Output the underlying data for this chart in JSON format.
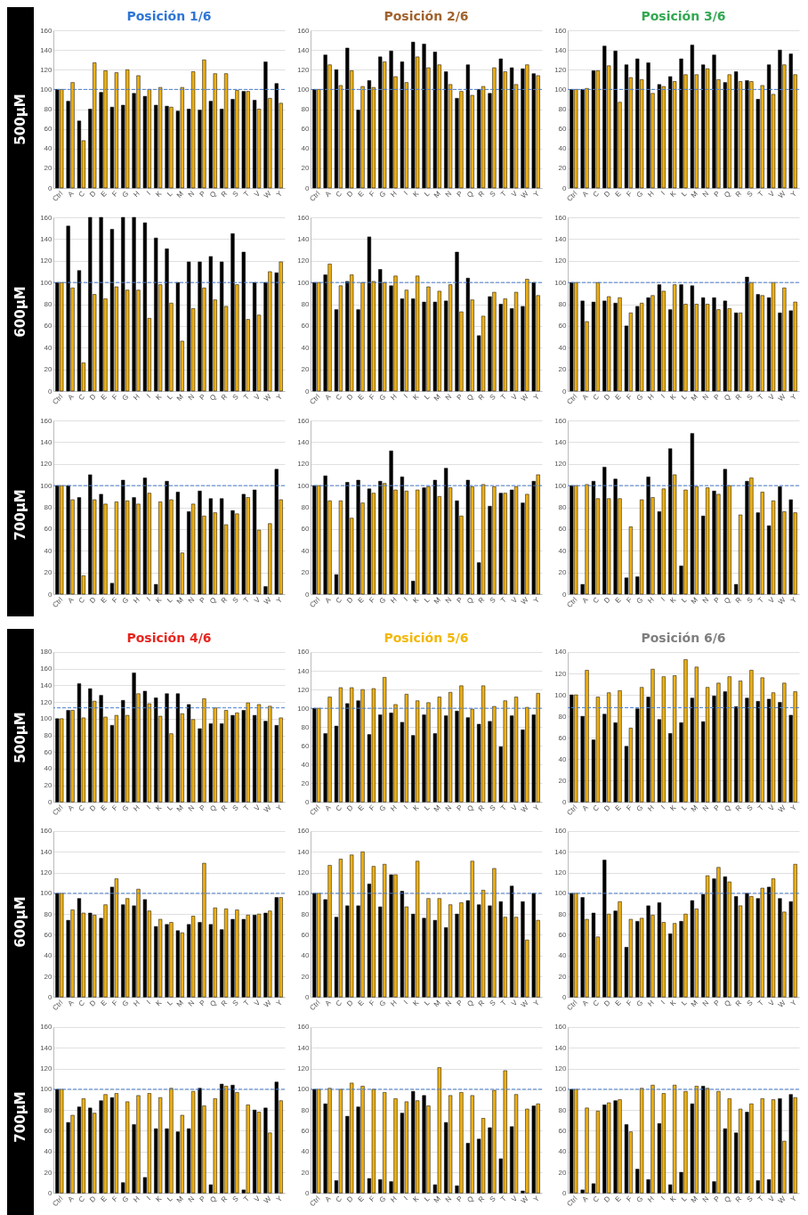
{
  "chart_data": [
    {
      "type": "bar",
      "title": "Posición 1/6",
      "ylabel": "500µM",
      "categories": [
        "Ctrl",
        "A",
        "C",
        "D",
        "E",
        "F",
        "G",
        "H",
        "I",
        "K",
        "L",
        "M",
        "N",
        "P",
        "Q",
        "R",
        "S",
        "T",
        "V",
        "W",
        "Y"
      ],
      "ylim": [
        0,
        160
      ],
      "yticks": [
        0,
        20,
        40,
        60,
        80,
        100,
        120,
        140,
        160
      ],
      "grid": "y",
      "ref_lines": [
        {
          "axis": "y",
          "value": 100,
          "color": "#4a7fd0",
          "line_style": "dashed"
        }
      ],
      "series": [
        {
          "color": "#000000",
          "values": [
            100,
            88,
            68,
            80,
            97,
            82,
            84,
            96,
            93,
            84,
            83,
            78,
            80,
            79,
            88,
            80,
            90,
            98,
            89,
            128,
            106
          ]
        },
        {
          "color": "#eeb012",
          "values": [
            100,
            107,
            48,
            127,
            119,
            117,
            120,
            114,
            100,
            102,
            82,
            102,
            118,
            130,
            116,
            116,
            99,
            98,
            80,
            91,
            86
          ]
        }
      ]
    },
    {
      "type": "bar",
      "title": "Posición 2/6",
      "categories": [
        "Ctrl",
        "A",
        "C",
        "D",
        "E",
        "F",
        "G",
        "H",
        "I",
        "K",
        "L",
        "M",
        "N",
        "P",
        "Q",
        "R",
        "S",
        "T",
        "V",
        "W",
        "Y"
      ],
      "ylim": [
        0,
        160
      ],
      "yticks": [
        0,
        20,
        40,
        60,
        80,
        100,
        120,
        140,
        160
      ],
      "grid": "y",
      "ref_lines": [
        {
          "axis": "y",
          "value": 100,
          "color": "#4a7fd0",
          "line_style": "dashed"
        }
      ],
      "series": [
        {
          "color": "#000000",
          "values": [
            100,
            135,
            120,
            142,
            79,
            109,
            133,
            139,
            128,
            148,
            146,
            138,
            118,
            91,
            125,
            100,
            96,
            131,
            122,
            121,
            116
          ]
        },
        {
          "color": "#eeb012",
          "values": [
            100,
            125,
            104,
            119,
            103,
            102,
            128,
            113,
            107,
            133,
            122,
            125,
            105,
            98,
            94,
            103,
            122,
            118,
            105,
            125,
            114
          ]
        }
      ]
    },
    {
      "type": "bar",
      "title": "Posición 3/6",
      "categories": [
        "Ctrl",
        "A",
        "C",
        "D",
        "E",
        "F",
        "G",
        "H",
        "I",
        "K",
        "L",
        "M",
        "N",
        "P",
        "Q",
        "R",
        "S",
        "T",
        "V",
        "W",
        "Y"
      ],
      "ylim": [
        0,
        160
      ],
      "yticks": [
        0,
        20,
        40,
        60,
        80,
        100,
        120,
        140,
        160
      ],
      "grid": "y",
      "ref_lines": [
        {
          "axis": "y",
          "value": 100,
          "color": "#4a7fd0",
          "line_style": "dashed"
        }
      ],
      "series": [
        {
          "color": "#000000",
          "values": [
            100,
            100,
            119,
            144,
            139,
            125,
            131,
            127,
            105,
            113,
            131,
            145,
            125,
            135,
            107,
            118,
            109,
            90,
            125,
            140,
            136
          ]
        },
        {
          "color": "#eeb012",
          "values": [
            100,
            101,
            119,
            124,
            87,
            112,
            110,
            96,
            103,
            108,
            115,
            115,
            121,
            110,
            115,
            108,
            108,
            104,
            95,
            125,
            115
          ]
        }
      ]
    },
    {
      "type": "bar",
      "ylabel": "600µM",
      "categories": [
        "Ctrl",
        "A",
        "C",
        "D",
        "E",
        "F",
        "G",
        "H",
        "I",
        "K",
        "L",
        "M",
        "N",
        "P",
        "Q",
        "R",
        "S",
        "T",
        "V",
        "W",
        "Y"
      ],
      "ylim": [
        0,
        160
      ],
      "yticks": [
        0,
        20,
        40,
        60,
        80,
        100,
        120,
        140,
        160
      ],
      "grid": "y",
      "ref_lines": [
        {
          "axis": "y",
          "value": 100,
          "color": "#4a7fd0",
          "line_style": "dashed"
        }
      ],
      "series": [
        {
          "color": "#000000",
          "values": [
            100,
            152,
            111,
            160,
            160,
            149,
            160,
            160,
            155,
            141,
            131,
            100,
            119,
            119,
            124,
            119,
            145,
            128,
            100,
            100,
            109
          ]
        },
        {
          "color": "#eeb012",
          "values": [
            100,
            95,
            26,
            89,
            85,
            96,
            93,
            93,
            67,
            98,
            81,
            46,
            76,
            95,
            84,
            78,
            98,
            66,
            70,
            110,
            119
          ]
        }
      ]
    },
    {
      "type": "bar",
      "categories": [
        "Ctrl",
        "A",
        "C",
        "D",
        "E",
        "F",
        "G",
        "H",
        "I",
        "K",
        "L",
        "M",
        "N",
        "P",
        "Q",
        "R",
        "S",
        "T",
        "V",
        "W",
        "Y"
      ],
      "ylim": [
        0,
        160
      ],
      "yticks": [
        0,
        20,
        40,
        60,
        80,
        100,
        120,
        140,
        160
      ],
      "grid": "y",
      "ref_lines": [
        {
          "axis": "y",
          "value": 100,
          "color": "#4a7fd0",
          "line_style": "dashed"
        }
      ],
      "series": [
        {
          "color": "#000000",
          "values": [
            100,
            107,
            75,
            101,
            75,
            142,
            112,
            97,
            85,
            85,
            82,
            82,
            83,
            128,
            104,
            51,
            87,
            80,
            76,
            78,
            100
          ]
        },
        {
          "color": "#eeb012",
          "values": [
            100,
            117,
            97,
            107,
            100,
            101,
            100,
            106,
            93,
            106,
            96,
            92,
            98,
            73,
            84,
            69,
            91,
            85,
            91,
            103,
            88
          ]
        }
      ]
    },
    {
      "type": "bar",
      "categories": [
        "Ctrl",
        "A",
        "C",
        "D",
        "E",
        "F",
        "G",
        "H",
        "I",
        "K",
        "L",
        "M",
        "N",
        "P",
        "Q",
        "R",
        "S",
        "T",
        "V",
        "W",
        "Y"
      ],
      "ylim": [
        0,
        160
      ],
      "yticks": [
        0,
        20,
        40,
        60,
        80,
        100,
        120,
        140,
        160
      ],
      "grid": "y",
      "ref_lines": [
        {
          "axis": "y",
          "value": 100,
          "color": "#4a7fd0",
          "line_style": "dashed"
        }
      ],
      "series": [
        {
          "color": "#000000",
          "values": [
            100,
            83,
            82,
            83,
            81,
            60,
            78,
            86,
            98,
            75,
            98,
            97,
            86,
            86,
            83,
            72,
            105,
            89,
            86,
            72,
            74
          ]
        },
        {
          "color": "#eeb012",
          "values": [
            100,
            64,
            100,
            87,
            86,
            72,
            81,
            88,
            92,
            98,
            80,
            80,
            80,
            75,
            76,
            72,
            100,
            88,
            100,
            95,
            82
          ]
        }
      ]
    },
    {
      "type": "bar",
      "ylabel": "700µM",
      "categories": [
        "Ctrl",
        "A",
        "C",
        "D",
        "E",
        "F",
        "G",
        "H",
        "I",
        "K",
        "L",
        "M",
        "N",
        "P",
        "Q",
        "R",
        "S",
        "T",
        "V",
        "W",
        "Y"
      ],
      "ylim": [
        0,
        160
      ],
      "yticks": [
        0,
        20,
        40,
        60,
        80,
        100,
        120,
        140,
        160
      ],
      "grid": "y",
      "ref_lines": [
        {
          "axis": "y",
          "value": 100,
          "color": "#4a7fd0",
          "line_style": "dashed"
        }
      ],
      "series": [
        {
          "color": "#000000",
          "values": [
            100,
            100,
            89,
            110,
            92,
            10,
            105,
            89,
            107,
            9,
            104,
            94,
            76,
            95,
            88,
            88,
            77,
            92,
            96,
            7,
            115
          ]
        },
        {
          "color": "#eeb012",
          "values": [
            100,
            87,
            17,
            87,
            83,
            85,
            86,
            83,
            93,
            85,
            87,
            38,
            83,
            72,
            75,
            64,
            74,
            89,
            59,
            65,
            87
          ]
        }
      ]
    },
    {
      "type": "bar",
      "categories": [
        "Ctrl",
        "A",
        "C",
        "D",
        "E",
        "F",
        "G",
        "H",
        "I",
        "K",
        "L",
        "M",
        "N",
        "P",
        "Q",
        "R",
        "S",
        "T",
        "V",
        "W",
        "Y"
      ],
      "ylim": [
        0,
        160
      ],
      "yticks": [
        0,
        20,
        40,
        60,
        80,
        100,
        120,
        140,
        160
      ],
      "grid": "y",
      "ref_lines": [
        {
          "axis": "y",
          "value": 100,
          "color": "#4a7fd0",
          "line_style": "dashed"
        }
      ],
      "series": [
        {
          "color": "#000000",
          "values": [
            100,
            109,
            18,
            103,
            105,
            97,
            104,
            132,
            108,
            12,
            98,
            105,
            116,
            86,
            105,
            29,
            81,
            93,
            96,
            84,
            104
          ]
        },
        {
          "color": "#eeb012",
          "values": [
            100,
            86,
            86,
            70,
            84,
            93,
            102,
            96,
            95,
            96,
            99,
            90,
            98,
            72,
            99,
            101,
            99,
            93,
            99,
            92,
            110
          ]
        }
      ]
    },
    {
      "type": "bar",
      "categories": [
        "Ctrl",
        "A",
        "C",
        "D",
        "E",
        "F",
        "G",
        "H",
        "I",
        "K",
        "L",
        "M",
        "N",
        "P",
        "Q",
        "R",
        "S",
        "T",
        "V",
        "W",
        "Y"
      ],
      "ylim": [
        0,
        160
      ],
      "yticks": [
        0,
        20,
        40,
        60,
        80,
        100,
        120,
        140,
        160
      ],
      "grid": "y",
      "ref_lines": [
        {
          "axis": "y",
          "value": 100,
          "color": "#4a7fd0",
          "line_style": "dashed"
        }
      ],
      "series": [
        {
          "color": "#000000",
          "values": [
            100,
            9,
            104,
            117,
            106,
            15,
            16,
            108,
            76,
            134,
            26,
            148,
            72,
            95,
            115,
            9,
            104,
            75,
            63,
            99,
            87
          ]
        },
        {
          "color": "#eeb012",
          "values": [
            100,
            101,
            88,
            88,
            88,
            62,
            87,
            89,
            97,
            110,
            96,
            99,
            98,
            92,
            100,
            73,
            107,
            94,
            86,
            76,
            75
          ]
        }
      ]
    },
    {
      "type": "bar",
      "title": "Posición 4/6",
      "ylabel": "500µM",
      "categories": [
        "Ctrl",
        "A",
        "C",
        "D",
        "E",
        "F",
        "G",
        "H",
        "I",
        "K",
        "L",
        "M",
        "N",
        "P",
        "Q",
        "R",
        "S",
        "T",
        "V",
        "W",
        "Y"
      ],
      "ylim": [
        0,
        180
      ],
      "yticks": [
        0,
        20,
        40,
        60,
        80,
        100,
        120,
        140,
        160,
        180
      ],
      "grid": "y",
      "ref_lines": [
        {
          "axis": "y",
          "value": 113,
          "color": "#4a7fd0",
          "line_style": "dashed"
        }
      ],
      "series": [
        {
          "color": "#000000",
          "values": [
            100,
            110,
            142,
            136,
            128,
            92,
            122,
            155,
            133,
            125,
            130,
            130,
            117,
            88,
            94,
            94,
            104,
            110,
            104,
            97,
            92
          ]
        },
        {
          "color": "#eeb012",
          "values": [
            100,
            110,
            101,
            121,
            102,
            104,
            104,
            130,
            118,
            103,
            82,
            106,
            99,
            124,
            113,
            110,
            107,
            119,
            117,
            115,
            101
          ]
        }
      ]
    },
    {
      "type": "bar",
      "title": "Posición 5/6",
      "categories": [
        "Ctrl",
        "A",
        "C",
        "D",
        "E",
        "F",
        "G",
        "H",
        "I",
        "K",
        "L",
        "M",
        "N",
        "P",
        "Q",
        "R",
        "S",
        "T",
        "V",
        "W",
        "Y"
      ],
      "ylim": [
        0,
        160
      ],
      "yticks": [
        0,
        20,
        40,
        60,
        80,
        100,
        120,
        140,
        160
      ],
      "grid": "y",
      "ref_lines": [
        {
          "axis": "y",
          "value": 100,
          "color": "#4a7fd0",
          "line_style": "dashed"
        }
      ],
      "series": [
        {
          "color": "#000000",
          "values": [
            100,
            73,
            81,
            105,
            108,
            72,
            93,
            95,
            85,
            71,
            93,
            73,
            92,
            97,
            90,
            83,
            86,
            59,
            92,
            77,
            93
          ]
        },
        {
          "color": "#eeb012",
          "values": [
            100,
            112,
            122,
            122,
            120,
            121,
            133,
            104,
            115,
            108,
            106,
            112,
            117,
            124,
            99,
            124,
            102,
            108,
            112,
            101,
            116
          ]
        }
      ]
    },
    {
      "type": "bar",
      "title": "Posición 6/6",
      "categories": [
        "Ctrl",
        "A",
        "C",
        "D",
        "E",
        "F",
        "G",
        "H",
        "I",
        "K",
        "L",
        "M",
        "N",
        "P",
        "Q",
        "R",
        "S",
        "T",
        "V",
        "W",
        "Y"
      ],
      "ylim": [
        0,
        140
      ],
      "yticks": [
        0,
        20,
        40,
        60,
        80,
        100,
        120,
        140
      ],
      "grid": "y",
      "ref_lines": [
        {
          "axis": "y",
          "value": 88,
          "color": "#4a7fd0",
          "line_style": "dashed"
        }
      ],
      "series": [
        {
          "color": "#000000",
          "values": [
            100,
            80,
            58,
            82,
            74,
            52,
            87,
            98,
            77,
            64,
            74,
            97,
            75,
            99,
            103,
            89,
            97,
            94,
            96,
            93,
            81
          ]
        },
        {
          "color": "#eeb012",
          "values": [
            100,
            123,
            98,
            102,
            104,
            69,
            107,
            124,
            117,
            118,
            133,
            126,
            107,
            111,
            117,
            113,
            123,
            116,
            102,
            111,
            103
          ]
        }
      ]
    },
    {
      "type": "bar",
      "ylabel": "600µM",
      "categories": [
        "Ctrl",
        "A",
        "C",
        "D",
        "E",
        "F",
        "G",
        "H",
        "I",
        "K",
        "L",
        "M",
        "N",
        "P",
        "Q",
        "R",
        "S",
        "T",
        "V",
        "W",
        "Y"
      ],
      "ylim": [
        0,
        160
      ],
      "yticks": [
        0,
        20,
        40,
        60,
        80,
        100,
        120,
        140,
        160
      ],
      "grid": "y",
      "ref_lines": [
        {
          "axis": "y",
          "value": 100,
          "color": "#4a7fd0",
          "line_style": "dashed"
        }
      ],
      "series": [
        {
          "color": "#000000",
          "values": [
            100,
            74,
            95,
            81,
            76,
            106,
            89,
            88,
            94,
            68,
            70,
            64,
            70,
            72,
            70,
            65,
            75,
            75,
            79,
            81,
            96
          ]
        },
        {
          "color": "#eeb012",
          "values": [
            100,
            84,
            81,
            79,
            89,
            114,
            95,
            104,
            83,
            75,
            72,
            62,
            78,
            129,
            86,
            85,
            84,
            79,
            80,
            83,
            96
          ]
        }
      ]
    },
    {
      "type": "bar",
      "categories": [
        "Ctrl",
        "A",
        "C",
        "D",
        "E",
        "F",
        "G",
        "H",
        "I",
        "K",
        "L",
        "M",
        "N",
        "P",
        "Q",
        "R",
        "S",
        "T",
        "V",
        "W",
        "Y"
      ],
      "ylim": [
        0,
        160
      ],
      "yticks": [
        0,
        20,
        40,
        60,
        80,
        100,
        120,
        140,
        160
      ],
      "grid": "y",
      "ref_lines": [
        {
          "axis": "y",
          "value": 100,
          "color": "#4a7fd0",
          "line_style": "dashed"
        }
      ],
      "series": [
        {
          "color": "#000000",
          "values": [
            100,
            94,
            77,
            88,
            88,
            109,
            87,
            118,
            102,
            80,
            76,
            74,
            67,
            80,
            93,
            89,
            88,
            92,
            107,
            92,
            100
          ]
        },
        {
          "color": "#eeb012",
          "values": [
            100,
            127,
            133,
            137,
            140,
            126,
            128,
            118,
            87,
            131,
            95,
            95,
            89,
            91,
            131,
            103,
            124,
            77,
            77,
            55,
            74
          ]
        }
      ]
    },
    {
      "type": "bar",
      "categories": [
        "Ctrl",
        "A",
        "C",
        "D",
        "E",
        "F",
        "G",
        "H",
        "I",
        "K",
        "L",
        "M",
        "N",
        "P",
        "Q",
        "R",
        "S",
        "T",
        "V",
        "W",
        "Y"
      ],
      "ylim": [
        0,
        160
      ],
      "yticks": [
        0,
        20,
        40,
        60,
        80,
        100,
        120,
        140,
        160
      ],
      "grid": "y",
      "ref_lines": [
        {
          "axis": "y",
          "value": 100,
          "color": "#4a7fd0",
          "line_style": "dashed"
        }
      ],
      "series": [
        {
          "color": "#000000",
          "values": [
            100,
            96,
            81,
            132,
            83,
            48,
            73,
            88,
            91,
            61,
            73,
            93,
            99,
            114,
            116,
            97,
            100,
            95,
            106,
            95,
            92
          ]
        },
        {
          "color": "#eeb012",
          "values": [
            100,
            75,
            58,
            80,
            92,
            75,
            76,
            79,
            72,
            71,
            80,
            85,
            117,
            125,
            111,
            88,
            97,
            105,
            114,
            82,
            128
          ]
        }
      ]
    },
    {
      "type": "bar",
      "ylabel": "700µM",
      "categories": [
        "Ctrl",
        "A",
        "C",
        "D",
        "E",
        "F",
        "G",
        "H",
        "I",
        "K",
        "L",
        "M",
        "N",
        "P",
        "Q",
        "R",
        "S",
        "T",
        "V",
        "W",
        "Y"
      ],
      "ylim": [
        0,
        160
      ],
      "yticks": [
        0,
        20,
        40,
        60,
        80,
        100,
        120,
        140,
        160
      ],
      "grid": "y",
      "ref_lines": [
        {
          "axis": "y",
          "value": 100,
          "color": "#4a7fd0",
          "line_style": "dashed"
        }
      ],
      "series": [
        {
          "color": "#000000",
          "values": [
            100,
            68,
            83,
            82,
            89,
            92,
            10,
            66,
            15,
            62,
            62,
            59,
            62,
            101,
            8,
            105,
            104,
            3,
            80,
            82,
            107
          ]
        },
        {
          "color": "#eeb012",
          "values": [
            100,
            75,
            91,
            77,
            95,
            96,
            88,
            94,
            96,
            92,
            101,
            75,
            98,
            84,
            91,
            103,
            97,
            85,
            78,
            58,
            89
          ]
        }
      ]
    },
    {
      "type": "bar",
      "categories": [
        "Ctrl",
        "A",
        "C",
        "D",
        "E",
        "F",
        "G",
        "H",
        "I",
        "K",
        "L",
        "M",
        "N",
        "P",
        "Q",
        "R",
        "S",
        "T",
        "V",
        "W",
        "Y"
      ],
      "ylim": [
        0,
        160
      ],
      "yticks": [
        0,
        20,
        40,
        60,
        80,
        100,
        120,
        140,
        160
      ],
      "grid": "y",
      "ref_lines": [
        {
          "axis": "y",
          "value": 100,
          "color": "#4a7fd0",
          "line_style": "dashed"
        }
      ],
      "series": [
        {
          "color": "#000000",
          "values": [
            100,
            86,
            12,
            74,
            83,
            14,
            13,
            11,
            77,
            98,
            94,
            8,
            68,
            7,
            48,
            52,
            63,
            33,
            64,
            2,
            84
          ]
        },
        {
          "color": "#eeb012",
          "values": [
            100,
            101,
            100,
            106,
            103,
            100,
            97,
            91,
            88,
            89,
            84,
            121,
            94,
            97,
            94,
            72,
            99,
            118,
            95,
            81,
            86
          ]
        }
      ]
    },
    {
      "type": "bar",
      "categories": [
        "Ctrl",
        "A",
        "C",
        "D",
        "E",
        "F",
        "G",
        "H",
        "I",
        "K",
        "L",
        "M",
        "N",
        "P",
        "Q",
        "R",
        "S",
        "T",
        "V",
        "W",
        "Y"
      ],
      "ylim": [
        0,
        160
      ],
      "yticks": [
        0,
        20,
        40,
        60,
        80,
        100,
        120,
        140,
        160
      ],
      "grid": "y",
      "ref_lines": [
        {
          "axis": "y",
          "value": 100,
          "color": "#4a7fd0",
          "line_style": "dashed"
        }
      ],
      "series": [
        {
          "color": "#000000",
          "values": [
            100,
            3,
            9,
            85,
            89,
            66,
            23,
            13,
            67,
            8,
            20,
            86,
            103,
            11,
            62,
            58,
            78,
            12,
            13,
            91,
            95
          ]
        },
        {
          "color": "#eeb012",
          "values": [
            100,
            82,
            79,
            87,
            90,
            59,
            101,
            104,
            96,
            104,
            98,
            103,
            101,
            98,
            91,
            81,
            86,
            91,
            90,
            50,
            92
          ]
        }
      ]
    }
  ]
}
